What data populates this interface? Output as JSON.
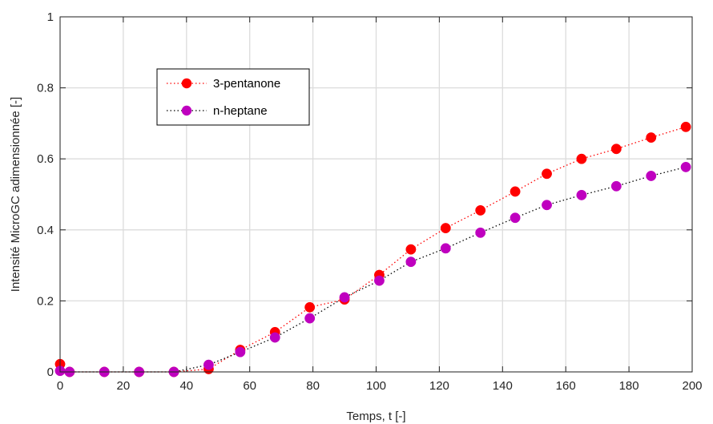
{
  "chart_data": {
    "type": "scatter",
    "title": "",
    "xlabel": "Temps, t [-]",
    "ylabel": "Intensité MicroGC adimensionnée [-]",
    "xlim": [
      0,
      200
    ],
    "ylim": [
      0,
      1
    ],
    "xticks": [
      "0",
      "20",
      "40",
      "60",
      "80",
      "100",
      "120",
      "140",
      "160",
      "180",
      "200"
    ],
    "yticks": [
      "0",
      "0.2",
      "0.4",
      "0.6",
      "0.8",
      "1"
    ],
    "grid": true,
    "legend_position": "upper-left",
    "series": [
      {
        "name": "3-pentanone",
        "color": "#ff0000",
        "line_style": "dotted",
        "marker": "circle",
        "x": [
          0,
          3,
          14,
          25,
          36,
          47,
          57,
          68,
          79,
          90,
          101,
          111,
          122,
          133,
          144,
          154,
          165,
          176,
          187,
          198
        ],
        "y": [
          0.022,
          0.0,
          0.0,
          0.0,
          0.0,
          0.008,
          0.062,
          0.112,
          0.182,
          0.204,
          0.273,
          0.345,
          0.405,
          0.455,
          0.508,
          0.558,
          0.6,
          0.628,
          0.66,
          0.69
        ]
      },
      {
        "name": "n-heptane",
        "color": "#bf00bf",
        "line_style": "dotted",
        "marker": "circle",
        "x": [
          0,
          3,
          14,
          25,
          36,
          47,
          57,
          68,
          79,
          90,
          101,
          111,
          122,
          133,
          144,
          154,
          165,
          176,
          187,
          198
        ],
        "y": [
          0.003,
          0.0,
          0.0,
          0.0,
          0.0,
          0.02,
          0.056,
          0.097,
          0.151,
          0.21,
          0.257,
          0.31,
          0.348,
          0.392,
          0.434,
          0.47,
          0.498,
          0.523,
          0.552,
          0.577
        ]
      }
    ]
  }
}
